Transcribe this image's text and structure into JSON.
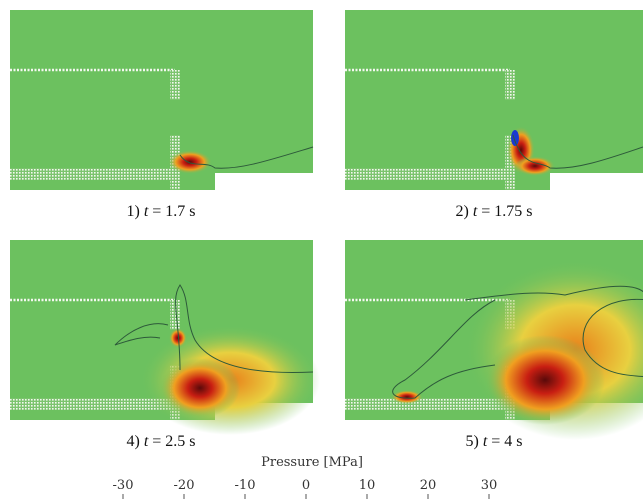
{
  "panels": [
    {
      "index": "1)",
      "variable": "t",
      "value": "= 1.7 s"
    },
    {
      "index": "2)",
      "variable": "t",
      "value": "= 1.75 s"
    },
    {
      "index": "4)",
      "variable": "t",
      "value": "= 2.5 s"
    },
    {
      "index": "5)",
      "variable": "t",
      "value": "= 4 s"
    }
  ],
  "colorbar": {
    "label": "Pressure [MPa]",
    "ticks": [
      -30,
      -20,
      -10,
      0,
      10,
      20,
      30
    ]
  }
}
